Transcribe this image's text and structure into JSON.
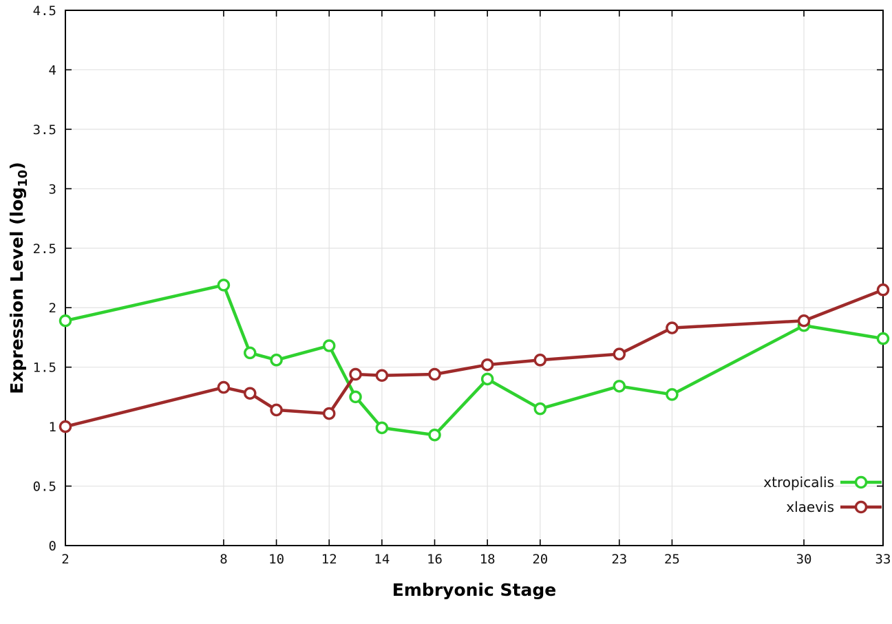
{
  "chart_data": {
    "type": "line",
    "title": "",
    "xlabel": "Embryonic Stage",
    "ylabel": "Expression Level (log10)",
    "ylabel_parts": {
      "main": "Expression Level (log",
      "sub": "10",
      "close": ")"
    },
    "xlim": [
      2,
      33
    ],
    "ylim": [
      0,
      4.5
    ],
    "grid": true,
    "legend_position": "bottom-right",
    "x_ticks": [
      2,
      8,
      10,
      12,
      14,
      16,
      18,
      20,
      23,
      25,
      30,
      33
    ],
    "x_tick_labels": [
      "2",
      "8",
      "10",
      "12",
      "14",
      "16",
      "18",
      "20",
      "23",
      "25",
      "30",
      "33"
    ],
    "y_ticks": [
      0,
      0.5,
      1,
      1.5,
      2,
      2.5,
      3,
      3.5,
      4,
      4.5
    ],
    "y_tick_labels": [
      "0",
      "0.5",
      "1",
      "1.5",
      "2",
      "2.5",
      "3",
      "3.5",
      "4",
      "4.5"
    ],
    "x": [
      2,
      8,
      9,
      10,
      12,
      13,
      14,
      16,
      18,
      20,
      23,
      25,
      30,
      33
    ],
    "series": [
      {
        "name": "xtropicalis",
        "color": "#2fd12f",
        "values": [
          1.89,
          2.19,
          1.62,
          1.56,
          1.68,
          1.25,
          0.99,
          0.93,
          1.4,
          1.15,
          1.34,
          1.27,
          1.85,
          1.74
        ]
      },
      {
        "name": "xlaevis",
        "color": "#9e2a2a",
        "values": [
          1.0,
          1.33,
          1.28,
          1.14,
          1.11,
          1.44,
          1.43,
          1.44,
          1.52,
          1.56,
          1.61,
          1.83,
          1.89,
          2.15
        ]
      }
    ],
    "colors": {
      "grid": "#e2e2e2",
      "axis": "#000000",
      "background": "#ffffff"
    }
  }
}
